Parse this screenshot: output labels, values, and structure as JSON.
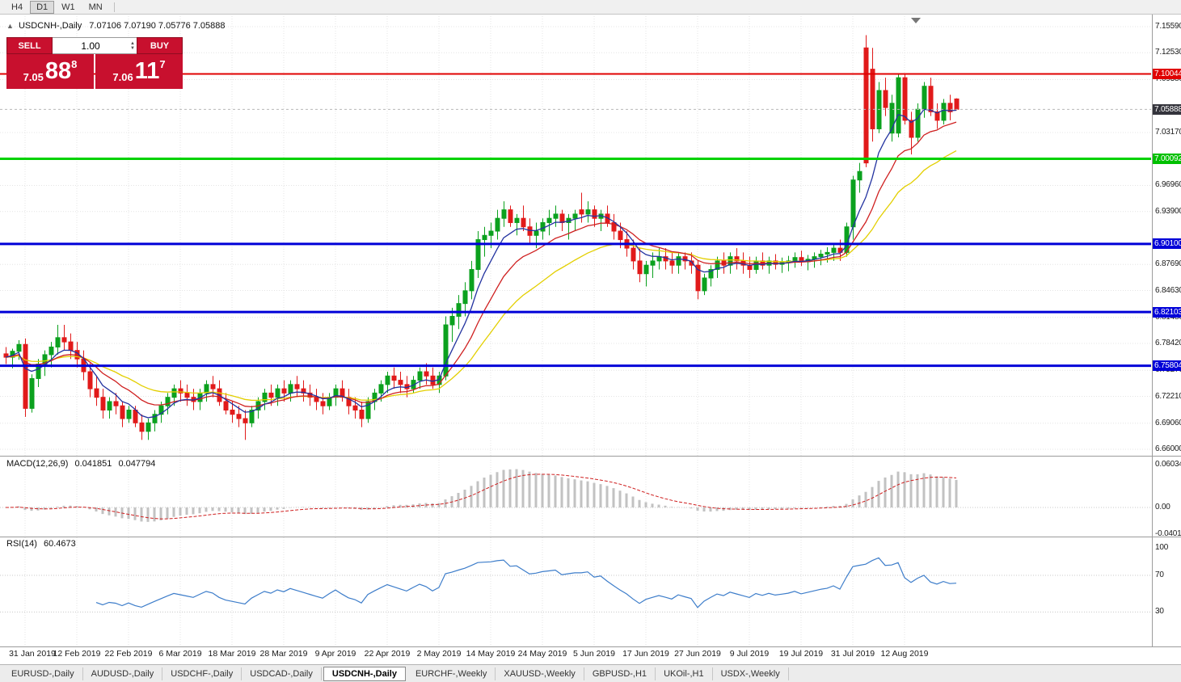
{
  "window": {
    "timeframe_bar": {
      "items": [
        "H4",
        "D1",
        "W1",
        "MN"
      ],
      "active": "D1"
    }
  },
  "chart_header": {
    "collapse_icon": "▲",
    "title": "USDCNH-,Daily",
    "ohlc": "7.07106 7.07190 7.05776 7.05888"
  },
  "trade_panel": {
    "sell_label": "SELL",
    "buy_label": "BUY",
    "volume": "1.00",
    "sell_price": {
      "small": "7.05",
      "big": "88",
      "sup": "8"
    },
    "buy_price": {
      "small": "7.06",
      "big": "11",
      "sup": "7"
    }
  },
  "price_axis": {
    "plain_labels": [
      "7.15590",
      "7.12530",
      "7.09380",
      "7.03170",
      "6.96960",
      "6.93900",
      "6.87690",
      "6.84630",
      "6.81480",
      "6.78420",
      "6.75270",
      "6.72210",
      "6.69060",
      "6.66000"
    ],
    "badges": [
      {
        "text": "7.10044",
        "value": 7.10044,
        "color": "#e00000"
      },
      {
        "text": "7.05888",
        "value": 7.05888,
        "color": "#34343c"
      },
      {
        "text": "7.00092",
        "value": 7.00092,
        "color": "#00c000"
      },
      {
        "text": "6.90100",
        "value": 6.901,
        "color": "#0000d8"
      },
      {
        "text": "6.82103",
        "value": 6.82103,
        "color": "#0000d8"
      },
      {
        "text": "6.75804",
        "value": 6.75804,
        "color": "#0000d8"
      }
    ]
  },
  "hlines": [
    {
      "value": 7.10044,
      "color": "#e00000",
      "width": 2
    },
    {
      "value": 7.00092,
      "color": "#00d200",
      "width": 3
    },
    {
      "value": 6.901,
      "color": "#0000d8",
      "width": 3
    },
    {
      "value": 6.82103,
      "color": "#0000d8",
      "width": 3
    },
    {
      "value": 6.75804,
      "color": "#0000d8",
      "width": 3
    }
  ],
  "current_price": {
    "text": "7.05888",
    "value": 7.05888
  },
  "date_axis": {
    "first_index": 3,
    "step": 8
  },
  "bottom_tabs": {
    "active_index": 4,
    "tabs": [
      "EURUSD-,Daily",
      "AUDUSD-,Daily",
      "USDCHF-,Daily",
      "USDCAD-,Daily",
      "USDCNH-,Daily",
      "EURCHF-,Weekly",
      "XAUUSD-,Weekly",
      "GBPUSD-,H1",
      "UKOil-,H1",
      "USDX-,Weekly"
    ]
  },
  "colors": {
    "bull": "#0ba11e",
    "bear": "#e11a1a",
    "ma_fast": "#2333a0",
    "ma_mid": "#cf2020",
    "ma_slow": "#e3cf00",
    "macd_hist": "#c2c2c2",
    "macd_signal": "#cf2020",
    "rsi_line": "#3d7dca",
    "grid": "#e4e4e4",
    "level_dots": "#c8c8c8"
  },
  "chart_data": {
    "type": "candlestick",
    "symbol": "USDCNH",
    "period": "Daily",
    "ylim": [
      6.66,
      7.1559
    ],
    "x_labels": [
      "31 Jan 2019",
      "12 Feb 2019",
      "22 Feb 2019",
      "6 Mar 2019",
      "18 Mar 2019",
      "28 Mar 2019",
      "9 Apr 2019",
      "22 Apr 2019",
      "2 May 2019",
      "14 May 2019",
      "24 May 2019",
      "5 Jun 2019",
      "17 Jun 2019",
      "27 Jun 2019",
      "9 Jul 2019",
      "19 Jul 2019",
      "31 Jul 2019",
      "12 Aug 2019"
    ],
    "candles_format": "[open, high, low, close, bullish(1=green,0=red)]",
    "candles": [
      [
        6.772,
        6.78,
        6.76,
        6.768,
        0
      ],
      [
        6.768,
        6.778,
        6.755,
        6.775,
        1
      ],
      [
        6.775,
        6.788,
        6.765,
        6.783,
        1
      ],
      [
        6.783,
        6.79,
        6.698,
        6.708,
        0
      ],
      [
        6.708,
        6.748,
        6.703,
        6.743,
        1
      ],
      [
        6.743,
        6.766,
        6.733,
        6.76,
        1
      ],
      [
        6.76,
        6.776,
        6.746,
        6.771,
        1
      ],
      [
        6.771,
        6.786,
        6.756,
        6.78,
        1
      ],
      [
        6.78,
        6.806,
        6.771,
        6.791,
        1
      ],
      [
        6.791,
        6.806,
        6.776,
        6.786,
        0
      ],
      [
        6.786,
        6.796,
        6.766,
        6.776,
        0
      ],
      [
        6.776,
        6.786,
        6.756,
        6.766,
        0
      ],
      [
        6.766,
        6.776,
        6.741,
        6.751,
        0
      ],
      [
        6.751,
        6.761,
        6.721,
        6.731,
        0
      ],
      [
        6.731,
        6.746,
        6.711,
        6.721,
        0
      ],
      [
        6.721,
        6.731,
        6.696,
        6.706,
        0
      ],
      [
        6.706,
        6.721,
        6.696,
        6.716,
        1
      ],
      [
        6.716,
        6.726,
        6.701,
        6.711,
        0
      ],
      [
        6.711,
        6.716,
        6.686,
        6.696,
        0
      ],
      [
        6.696,
        6.711,
        6.691,
        6.706,
        1
      ],
      [
        6.706,
        6.711,
        6.686,
        6.691,
        0
      ],
      [
        6.691,
        6.701,
        6.671,
        6.681,
        0
      ],
      [
        6.681,
        6.696,
        6.671,
        6.691,
        1
      ],
      [
        6.691,
        6.706,
        6.681,
        6.701,
        1
      ],
      [
        6.701,
        6.716,
        6.691,
        6.711,
        1
      ],
      [
        6.711,
        6.726,
        6.701,
        6.721,
        1
      ],
      [
        6.721,
        6.736,
        6.711,
        6.731,
        1
      ],
      [
        6.731,
        6.741,
        6.716,
        6.726,
        0
      ],
      [
        6.726,
        6.736,
        6.711,
        6.721,
        0
      ],
      [
        6.721,
        6.731,
        6.706,
        6.716,
        0
      ],
      [
        6.716,
        6.731,
        6.706,
        6.726,
        1
      ],
      [
        6.726,
        6.741,
        6.716,
        6.736,
        1
      ],
      [
        6.736,
        6.746,
        6.721,
        6.731,
        0
      ],
      [
        6.731,
        6.741,
        6.711,
        6.716,
        0
      ],
      [
        6.716,
        6.726,
        6.701,
        6.706,
        0
      ],
      [
        6.706,
        6.716,
        6.691,
        6.701,
        0
      ],
      [
        6.701,
        6.711,
        6.686,
        6.696,
        0
      ],
      [
        6.696,
        6.706,
        6.671,
        6.691,
        0
      ],
      [
        6.691,
        6.711,
        6.686,
        6.706,
        1
      ],
      [
        6.706,
        6.721,
        6.696,
        6.716,
        1
      ],
      [
        6.716,
        6.731,
        6.706,
        6.726,
        1
      ],
      [
        6.726,
        6.736,
        6.711,
        6.721,
        0
      ],
      [
        6.721,
        6.736,
        6.711,
        6.731,
        1
      ],
      [
        6.731,
        6.741,
        6.716,
        6.726,
        0
      ],
      [
        6.726,
        6.741,
        6.716,
        6.736,
        1
      ],
      [
        6.736,
        6.746,
        6.721,
        6.731,
        0
      ],
      [
        6.731,
        6.741,
        6.716,
        6.726,
        0
      ],
      [
        6.726,
        6.736,
        6.711,
        6.721,
        0
      ],
      [
        6.721,
        6.731,
        6.706,
        6.716,
        0
      ],
      [
        6.716,
        6.726,
        6.701,
        6.711,
        0
      ],
      [
        6.711,
        6.726,
        6.706,
        6.721,
        1
      ],
      [
        6.721,
        6.736,
        6.711,
        6.731,
        1
      ],
      [
        6.731,
        6.741,
        6.716,
        6.721,
        0
      ],
      [
        6.721,
        6.731,
        6.701,
        6.711,
        0
      ],
      [
        6.711,
        6.721,
        6.696,
        6.706,
        0
      ],
      [
        6.706,
        6.716,
        6.686,
        6.696,
        0
      ],
      [
        6.696,
        6.721,
        6.691,
        6.716,
        1
      ],
      [
        6.716,
        6.731,
        6.706,
        6.726,
        1
      ],
      [
        6.726,
        6.741,
        6.716,
        6.736,
        1
      ],
      [
        6.736,
        6.751,
        6.726,
        6.746,
        1
      ],
      [
        6.746,
        6.756,
        6.731,
        6.741,
        0
      ],
      [
        6.741,
        6.751,
        6.726,
        6.736,
        0
      ],
      [
        6.736,
        6.746,
        6.721,
        6.731,
        0
      ],
      [
        6.731,
        6.746,
        6.726,
        6.741,
        1
      ],
      [
        6.741,
        6.756,
        6.731,
        6.751,
        1
      ],
      [
        6.751,
        6.761,
        6.736,
        6.746,
        0
      ],
      [
        6.746,
        6.756,
        6.731,
        6.736,
        0
      ],
      [
        6.736,
        6.751,
        6.726,
        6.746,
        1
      ],
      [
        6.746,
        6.816,
        6.741,
        6.806,
        1
      ],
      [
        6.806,
        6.826,
        6.786,
        6.816,
        1
      ],
      [
        6.816,
        6.841,
        6.801,
        6.831,
        1
      ],
      [
        6.831,
        6.856,
        6.816,
        6.846,
        1
      ],
      [
        6.846,
        6.881,
        6.836,
        6.871,
        1
      ],
      [
        6.871,
        6.916,
        6.861,
        6.906,
        1
      ],
      [
        6.906,
        6.921,
        6.886,
        6.911,
        1
      ],
      [
        6.911,
        6.926,
        6.896,
        6.916,
        1
      ],
      [
        6.916,
        6.941,
        6.906,
        6.931,
        1
      ],
      [
        6.931,
        6.951,
        6.921,
        6.941,
        1
      ],
      [
        6.941,
        6.946,
        6.921,
        6.926,
        0
      ],
      [
        6.926,
        6.936,
        6.911,
        6.931,
        1
      ],
      [
        6.931,
        6.946,
        6.916,
        6.921,
        0
      ],
      [
        6.921,
        6.931,
        6.901,
        6.911,
        0
      ],
      [
        6.911,
        6.926,
        6.896,
        6.916,
        1
      ],
      [
        6.916,
        6.931,
        6.906,
        6.926,
        1
      ],
      [
        6.926,
        6.941,
        6.911,
        6.931,
        1
      ],
      [
        6.931,
        6.946,
        6.921,
        6.936,
        1
      ],
      [
        6.936,
        6.941,
        6.916,
        6.926,
        0
      ],
      [
        6.926,
        6.936,
        6.906,
        6.931,
        1
      ],
      [
        6.931,
        6.941,
        6.916,
        6.936,
        1
      ],
      [
        6.941,
        6.961,
        6.926,
        6.936,
        0
      ],
      [
        6.936,
        6.951,
        6.926,
        6.941,
        1
      ],
      [
        6.941,
        6.946,
        6.921,
        6.931,
        0
      ],
      [
        6.931,
        6.941,
        6.916,
        6.936,
        1
      ],
      [
        6.936,
        6.946,
        6.921,
        6.926,
        0
      ],
      [
        6.926,
        6.936,
        6.906,
        6.916,
        0
      ],
      [
        6.916,
        6.926,
        6.896,
        6.906,
        0
      ],
      [
        6.906,
        6.916,
        6.886,
        6.896,
        0
      ],
      [
        6.896,
        6.906,
        6.871,
        6.881,
        0
      ],
      [
        6.881,
        6.896,
        6.856,
        6.866,
        0
      ],
      [
        6.866,
        6.881,
        6.851,
        6.876,
        1
      ],
      [
        6.876,
        6.891,
        6.861,
        6.881,
        1
      ],
      [
        6.881,
        6.896,
        6.871,
        6.886,
        1
      ],
      [
        6.886,
        6.896,
        6.871,
        6.881,
        0
      ],
      [
        6.881,
        6.891,
        6.866,
        6.876,
        0
      ],
      [
        6.876,
        6.891,
        6.866,
        6.886,
        1
      ],
      [
        6.886,
        6.891,
        6.871,
        6.881,
        0
      ],
      [
        6.881,
        6.891,
        6.866,
        6.876,
        0
      ],
      [
        6.876,
        6.881,
        6.836,
        6.846,
        0
      ],
      [
        6.846,
        6.866,
        6.841,
        6.861,
        1
      ],
      [
        6.861,
        6.876,
        6.851,
        6.871,
        1
      ],
      [
        6.871,
        6.886,
        6.861,
        6.881,
        1
      ],
      [
        6.881,
        6.891,
        6.866,
        6.876,
        0
      ],
      [
        6.876,
        6.891,
        6.866,
        6.886,
        1
      ],
      [
        6.886,
        6.896,
        6.871,
        6.881,
        0
      ],
      [
        6.881,
        6.891,
        6.866,
        6.876,
        0
      ],
      [
        6.876,
        6.886,
        6.861,
        6.871,
        0
      ],
      [
        6.871,
        6.886,
        6.866,
        6.881,
        1
      ],
      [
        6.881,
        6.891,
        6.871,
        6.876,
        0
      ],
      [
        6.876,
        6.886,
        6.866,
        6.881,
        1
      ],
      [
        6.881,
        6.889,
        6.871,
        6.877,
        0
      ],
      [
        6.877,
        6.885,
        6.867,
        6.879,
        1
      ],
      [
        6.879,
        6.887,
        6.869,
        6.881,
        1
      ],
      [
        6.881,
        6.891,
        6.873,
        6.885,
        1
      ],
      [
        6.885,
        6.893,
        6.875,
        6.88,
        0
      ],
      [
        6.88,
        6.888,
        6.87,
        6.883,
        1
      ],
      [
        6.883,
        6.891,
        6.873,
        6.886,
        1
      ],
      [
        6.886,
        6.894,
        6.876,
        6.889,
        1
      ],
      [
        6.889,
        6.897,
        6.879,
        6.891,
        1
      ],
      [
        6.891,
        6.901,
        6.881,
        6.896,
        1
      ],
      [
        6.896,
        6.906,
        6.881,
        6.891,
        0
      ],
      [
        6.891,
        6.926,
        6.886,
        6.921,
        1
      ],
      [
        6.921,
        6.981,
        6.906,
        6.976,
        1
      ],
      [
        6.976,
        6.996,
        6.961,
        6.986,
        1
      ],
      [
        7.131,
        7.146,
        6.991,
        6.996,
        0
      ],
      [
        7.106,
        7.131,
        7.021,
        7.036,
        0
      ],
      [
        7.036,
        7.091,
        7.031,
        7.081,
        1
      ],
      [
        7.081,
        7.096,
        7.051,
        7.061,
        0
      ],
      [
        7.031,
        7.076,
        7.021,
        7.066,
        1
      ],
      [
        7.031,
        7.101,
        7.026,
        7.096,
        1
      ],
      [
        7.096,
        7.101,
        7.041,
        7.046,
        0
      ],
      [
        7.046,
        7.056,
        7.006,
        7.026,
        0
      ],
      [
        7.026,
        7.066,
        7.021,
        7.059,
        1
      ],
      [
        7.059,
        7.091,
        7.049,
        7.086,
        1
      ],
      [
        7.086,
        7.096,
        7.051,
        7.056,
        0
      ],
      [
        7.056,
        7.066,
        7.036,
        7.046,
        0
      ],
      [
        7.046,
        7.071,
        7.041,
        7.066,
        1
      ],
      [
        7.066,
        7.076,
        7.046,
        7.056,
        0
      ],
      [
        7.0711,
        7.0719,
        7.0578,
        7.0589,
        0
      ]
    ],
    "overlays": [
      {
        "name": "ma-fast",
        "period": 6,
        "color_key": "ma_fast"
      },
      {
        "name": "ma-mid",
        "period": 13,
        "color_key": "ma_mid"
      },
      {
        "name": "ma-slow",
        "period": 25,
        "color_key": "ma_slow"
      }
    ],
    "indicators": [
      {
        "name": "MACD",
        "label": "MACD(12,26,9)",
        "values_text": [
          "0.041851",
          "0.047794"
        ],
        "params": [
          12,
          26,
          9
        ],
        "axis_labels": [
          "0.060343",
          "0.00",
          "-0.040136"
        ],
        "axis_values": [
          0.060343,
          0,
          -0.040136
        ]
      },
      {
        "name": "RSI",
        "label": "RSI(14)",
        "value_text": "60.4673",
        "period": 14,
        "axis_labels": [
          "100",
          "70",
          "30"
        ],
        "axis_values": [
          100,
          70,
          30
        ],
        "levels": [
          70,
          30
        ]
      }
    ]
  }
}
